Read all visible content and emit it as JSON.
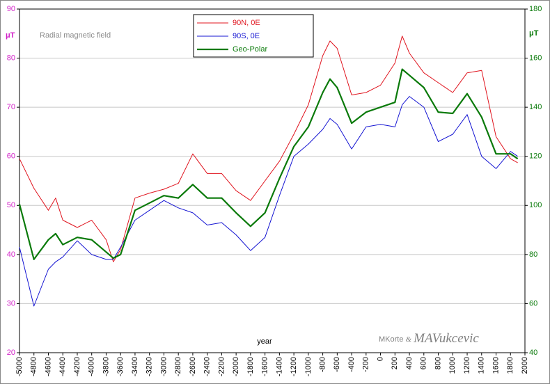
{
  "chart_data": {
    "type": "line",
    "title": "Radial magnetic field",
    "y_label": "μT",
    "y2_label": "μT",
    "x_label": "year",
    "annotations": [
      "MKorte",
      "&",
      "MAVukcevic"
    ],
    "x": [
      -5000,
      -4800,
      -4600,
      -4500,
      -4400,
      -4200,
      -4000,
      -3800,
      -3700,
      -3600,
      -3400,
      -3200,
      -3000,
      -2800,
      -2600,
      -2400,
      -2200,
      -2000,
      -1800,
      -1600,
      -1400,
      -1200,
      -1000,
      -800,
      -700,
      -600,
      -400,
      -200,
      0,
      200,
      300,
      400,
      600,
      800,
      1000,
      1200,
      1400,
      1600,
      1800,
      1900
    ],
    "series": [
      {
        "name": "90N, 0E",
        "color": "#e0141e",
        "axis": "y",
        "values": [
          59.5,
          53.5,
          49,
          51.5,
          47,
          45.5,
          47,
          43,
          38.5,
          41,
          51.5,
          52.5,
          53.3,
          54.5,
          60.5,
          56.5,
          56.5,
          53,
          51,
          55,
          59,
          64.5,
          70.5,
          80.5,
          83.5,
          82,
          72.5,
          73,
          74.5,
          79,
          84.5,
          81,
          77,
          75,
          73,
          77,
          77.5,
          64,
          59.5,
          58.7
        ]
      },
      {
        "name": "90S, 0E",
        "color": "#1414d2",
        "axis": "y",
        "values": [
          41.5,
          29.5,
          37,
          38.5,
          39.5,
          42.8,
          40,
          39,
          39,
          41.5,
          47,
          49,
          51,
          49.5,
          48.5,
          46,
          46.5,
          44,
          40.8,
          43.5,
          52,
          60,
          62.5,
          65.5,
          67.7,
          66.5,
          61.5,
          66,
          66.5,
          66,
          70.5,
          72.2,
          70,
          63,
          64.5,
          68.5,
          60,
          57.5,
          61,
          60
        ]
      },
      {
        "name": "Geo-Polar",
        "color": "#0a7a0a",
        "axis": "y2",
        "values": [
          100.5,
          78,
          86,
          88.5,
          84,
          87,
          86,
          81,
          78.5,
          80,
          98,
          101,
          104,
          103,
          108.5,
          103,
          103,
          97,
          91.5,
          97,
          111,
          124,
          132,
          146,
          151.5,
          148,
          133.5,
          138,
          140,
          142,
          155.5,
          153,
          148,
          138,
          137.5,
          145.5,
          136,
          121,
          121,
          119
        ]
      }
    ],
    "xlim": [
      -5000,
      2000
    ],
    "xticks": [
      -5000,
      -4800,
      -4600,
      -4400,
      -4200,
      -4000,
      -3800,
      -3600,
      -3400,
      -3200,
      -3000,
      -2800,
      -2600,
      -2400,
      -2200,
      -2000,
      -1800,
      -1600,
      -1400,
      -1200,
      -1000,
      -800,
      -600,
      -400,
      -200,
      0,
      200,
      400,
      600,
      800,
      1000,
      1200,
      1400,
      1600,
      1800,
      2000
    ],
    "ylim": [
      20,
      90
    ],
    "yticks": [
      20,
      30,
      40,
      50,
      60,
      70,
      80,
      90
    ],
    "y2lim": [
      40,
      180
    ],
    "y2ticks": [
      40,
      60,
      80,
      100,
      120,
      140,
      160,
      180
    ],
    "y_color": "#d21ec8",
    "y2_color": "#0a7a0a",
    "grid": true
  }
}
